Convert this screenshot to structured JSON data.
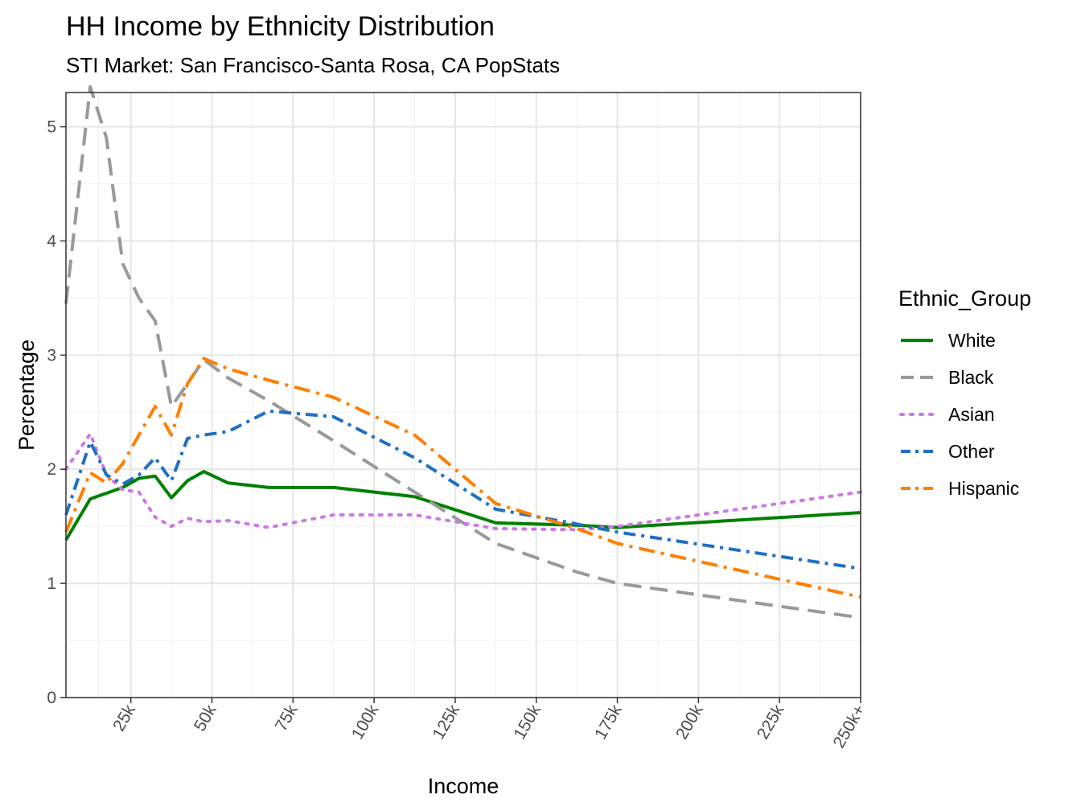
{
  "chart_data": {
    "type": "line",
    "title": "HH Income by Ethnicity Distribution",
    "subtitle": "STI Market: San Francisco-Santa Rosa, CA PopStats",
    "xlabel": "Income",
    "ylabel": "Percentage",
    "x_tick_labels": [
      "25k",
      "50k",
      "75k",
      "100k",
      "125k",
      "150k",
      "175k",
      "200k",
      "225k",
      "250k+"
    ],
    "x_tick_values": [
      25,
      50,
      75,
      100,
      125,
      150,
      175,
      200,
      225,
      250
    ],
    "xlim": [
      5,
      250
    ],
    "ylim": [
      0,
      5.3
    ],
    "y_ticks": [
      0,
      1,
      2,
      3,
      4,
      5
    ],
    "grid": true,
    "legend_title": "Ethnic_Group",
    "legend_position": "right",
    "series": [
      {
        "name": "White",
        "color": "#008000",
        "dash": "solid",
        "x": [
          5,
          12.5,
          17.5,
          22.5,
          27.5,
          32.5,
          37.5,
          42.5,
          47.5,
          55,
          67.5,
          87.5,
          112.5,
          137.5,
          162.5,
          175,
          250
        ],
        "y": [
          1.38,
          1.74,
          1.79,
          1.84,
          1.92,
          1.94,
          1.75,
          1.9,
          1.98,
          1.88,
          1.84,
          1.84,
          1.76,
          1.53,
          1.51,
          1.49,
          1.62
        ]
      },
      {
        "name": "Black",
        "color": "#999999",
        "dash": "long-dash",
        "x": [
          5,
          12.5,
          17.5,
          22.5,
          27.5,
          32.5,
          37.5,
          42.5,
          47.5,
          55,
          67.5,
          87.5,
          112.5,
          137.5,
          162.5,
          175,
          250
        ],
        "y": [
          3.45,
          5.35,
          4.9,
          3.8,
          3.5,
          3.3,
          2.55,
          2.75,
          2.96,
          2.8,
          2.6,
          2.25,
          1.8,
          1.35,
          1.1,
          1.0,
          0.7
        ]
      },
      {
        "name": "Asian",
        "color": "#cc79e6",
        "dash": "dotted",
        "x": [
          5,
          12.5,
          17.5,
          22.5,
          27.5,
          32.5,
          37.5,
          42.5,
          47.5,
          55,
          67.5,
          87.5,
          112.5,
          137.5,
          162.5,
          175,
          250
        ],
        "y": [
          2.0,
          2.31,
          1.95,
          1.82,
          1.8,
          1.58,
          1.5,
          1.57,
          1.54,
          1.55,
          1.49,
          1.6,
          1.6,
          1.48,
          1.47,
          1.5,
          1.8
        ]
      },
      {
        "name": "Other",
        "color": "#1f6fc5",
        "dash": "dash-dot",
        "x": [
          5,
          12.5,
          17.5,
          22.5,
          27.5,
          32.5,
          37.5,
          42.5,
          47.5,
          55,
          67.5,
          87.5,
          112.5,
          137.5,
          162.5,
          175,
          250
        ],
        "y": [
          1.6,
          2.24,
          1.95,
          1.87,
          1.95,
          2.1,
          1.9,
          2.27,
          2.3,
          2.33,
          2.51,
          2.46,
          2.1,
          1.65,
          1.52,
          1.45,
          1.13
        ]
      },
      {
        "name": "Hispanic",
        "color": "#ff7f00",
        "dash": "long-dash-dot",
        "x": [
          5,
          12.5,
          17.5,
          22.5,
          27.5,
          32.5,
          37.5,
          42.5,
          47.5,
          55,
          67.5,
          87.5,
          112.5,
          137.5,
          162.5,
          175,
          250
        ],
        "y": [
          1.45,
          1.97,
          1.88,
          2.05,
          2.3,
          2.55,
          2.3,
          2.75,
          2.97,
          2.88,
          2.78,
          2.63,
          2.3,
          1.7,
          1.48,
          1.35,
          0.88
        ]
      }
    ]
  }
}
